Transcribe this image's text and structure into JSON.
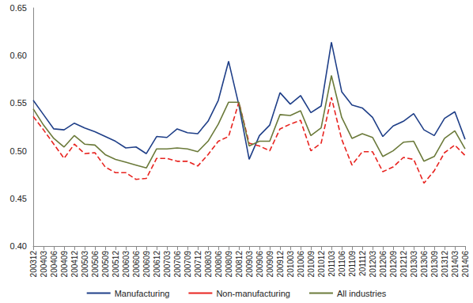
{
  "chart_data": {
    "type": "line",
    "categories": [
      "200312",
      "200403",
      "200406",
      "200409",
      "200412",
      "200503",
      "200506",
      "200509",
      "200512",
      "200603",
      "200606",
      "200609",
      "200612",
      "200703",
      "200706",
      "200709",
      "200712",
      "200803",
      "200806",
      "200809",
      "200812",
      "200903",
      "200906",
      "200909",
      "200912",
      "201003",
      "201006",
      "201009",
      "201012",
      "201103",
      "201106",
      "201109",
      "201112",
      "201203",
      "201206",
      "201209",
      "201212",
      "201303",
      "201306",
      "201309",
      "201312",
      "201403",
      "201406"
    ],
    "series": [
      {
        "name": "Manufacturing",
        "color": "#1f3f88",
        "line_style": "solid",
        "values": [
          0.553,
          0.538,
          0.523,
          0.522,
          0.529,
          0.524,
          0.52,
          0.515,
          0.51,
          0.503,
          0.504,
          0.497,
          0.515,
          0.514,
          0.523,
          0.519,
          0.518,
          0.531,
          0.553,
          0.594,
          0.548,
          0.491,
          0.516,
          0.527,
          0.561,
          0.549,
          0.558,
          0.54,
          0.547,
          0.614,
          0.562,
          0.548,
          0.545,
          0.535,
          0.515,
          0.526,
          0.531,
          0.539,
          0.522,
          0.516,
          0.534,
          0.541,
          0.512
        ]
      },
      {
        "name": "Non-manufacturing",
        "color": "#e8231f",
        "line_style": "dashed",
        "values": [
          0.536,
          0.522,
          0.507,
          0.492,
          0.507,
          0.497,
          0.498,
          0.483,
          0.477,
          0.477,
          0.47,
          0.471,
          0.492,
          0.492,
          0.489,
          0.489,
          0.484,
          0.496,
          0.51,
          0.515,
          0.551,
          0.508,
          0.505,
          0.5,
          0.523,
          0.528,
          0.532,
          0.5,
          0.508,
          0.556,
          0.512,
          0.485,
          0.499,
          0.499,
          0.478,
          0.483,
          0.493,
          0.491,
          0.466,
          0.479,
          0.498,
          0.506,
          0.495
        ]
      },
      {
        "name": "All industries",
        "color": "#6b7a3a",
        "line_style": "solid",
        "values": [
          0.544,
          0.527,
          0.513,
          0.504,
          0.516,
          0.507,
          0.506,
          0.496,
          0.491,
          0.488,
          0.485,
          0.482,
          0.502,
          0.502,
          0.503,
          0.502,
          0.499,
          0.51,
          0.528,
          0.551,
          0.551,
          0.505,
          0.51,
          0.51,
          0.538,
          0.537,
          0.542,
          0.516,
          0.524,
          0.579,
          0.535,
          0.513,
          0.518,
          0.514,
          0.494,
          0.5,
          0.509,
          0.51,
          0.489,
          0.494,
          0.513,
          0.521,
          0.502
        ]
      }
    ],
    "ylim": [
      0.4,
      0.65
    ],
    "yticks": [
      {
        "value": 0.4,
        "label": "0.40"
      },
      0.45,
      {
        "value": 0.5,
        "label": "0.50"
      },
      0.55,
      {
        "value": 0.6,
        "label": "0.60"
      },
      0.65
    ],
    "grid": false,
    "legend": "bottom"
  }
}
